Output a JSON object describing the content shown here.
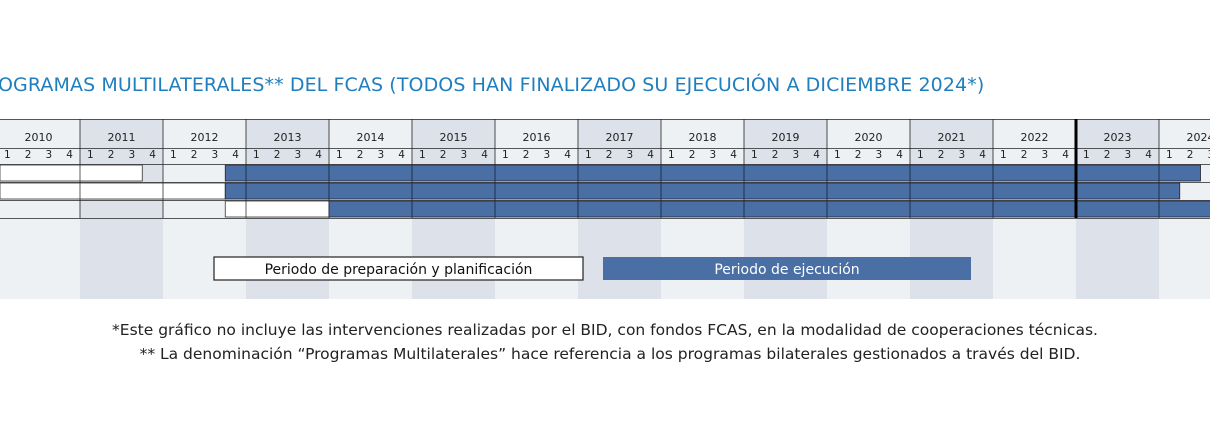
{
  "title": "OGRAMAS MULTILATERALES** DEL FCAS (TODOS HAN FINALIZADO SU EJECUCIÓN A DICIEMBRE 2024*)",
  "chart_data": {
    "type": "gantt",
    "years": [
      "2010",
      "2011",
      "2012",
      "2013",
      "2014",
      "2015",
      "2016",
      "2017",
      "2018",
      "2019",
      "2020",
      "2021",
      "2022",
      "2023",
      "2024"
    ],
    "quarters": [
      "1",
      "2",
      "3",
      "4"
    ],
    "rows": [
      {
        "preparation": [
          "2010-Q1",
          "2011-Q3"
        ],
        "execution": [
          "2012-Q4",
          "2024-Q2"
        ]
      },
      {
        "preparation": [
          "2010-Q1",
          "2012-Q3"
        ],
        "execution": [
          "2012-Q4",
          "2024-Q1"
        ]
      },
      {
        "preparation": [
          "2012-Q4",
          "2013-Q4"
        ],
        "execution": [
          "2014-Q1",
          "2024-Q3"
        ]
      }
    ],
    "marker": "2022-Q4",
    "legend": [
      {
        "label": "Periodo de preparación y planificación",
        "color": "#ffffff"
      },
      {
        "label": "Periodo de ejecución",
        "color": "#4a6fa5"
      }
    ]
  },
  "footnotes": {
    "line1": "*Este gráfico no incluye las intervenciones realizadas por el BID, con fondos FCAS, en la modalidad de cooperaciones técnicas.",
    "line2": "** La denominación “Programas Multilaterales” hace referencia a los programas bilaterales gestionados a través del BID."
  },
  "colors": {
    "title": "#1f7fbe",
    "execution": "#4a6fa5",
    "band_light": "#eef1f4",
    "band_dark": "#dde2ea",
    "grid": "#222222"
  }
}
